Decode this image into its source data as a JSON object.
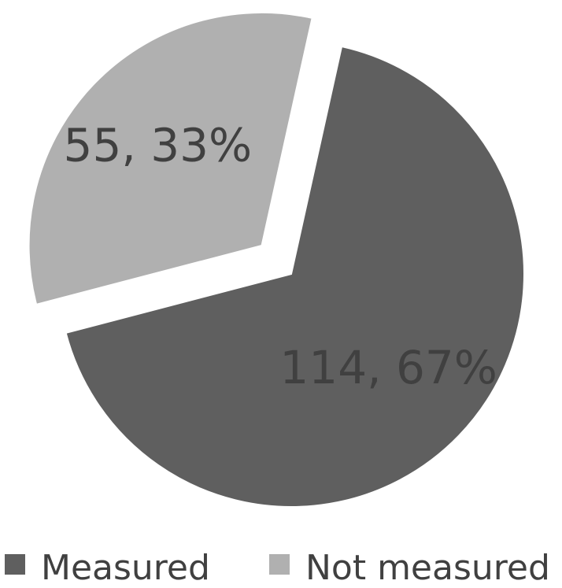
{
  "chart_data": {
    "type": "pie",
    "slices": [
      {
        "name": "Measured",
        "value": 114,
        "percent": "67%",
        "label": "114, 67%",
        "color": "#5f5f5f",
        "exploded": false
      },
      {
        "name": "Not measured",
        "value": 55,
        "percent": "33%",
        "label": "55, 33%",
        "color": "#b0b0b0",
        "exploded": true
      }
    ],
    "legend": {
      "position": "bottom",
      "items": [
        "Measured",
        "Not measured"
      ]
    },
    "title": "",
    "colors": {
      "label_text": "#404040",
      "separator": "#ffffff"
    }
  }
}
